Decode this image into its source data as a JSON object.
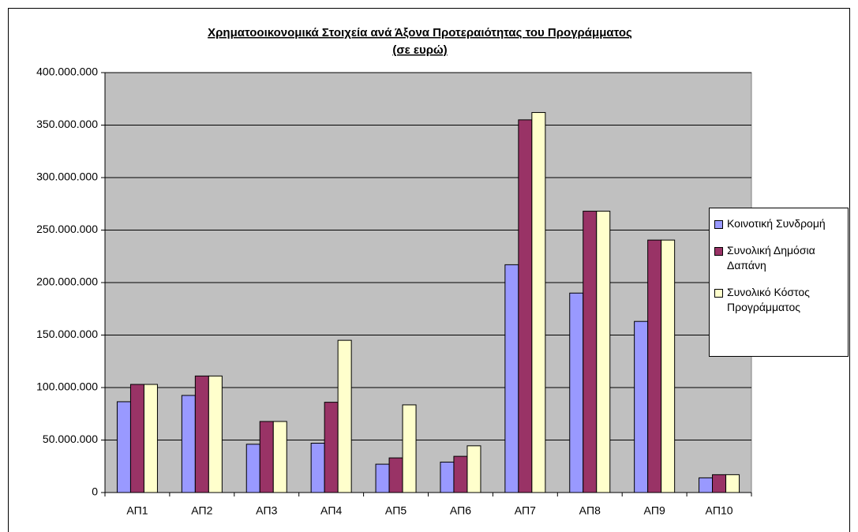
{
  "chart_data": {
    "type": "bar",
    "title": "Χρηματοοικονομικά Στοιχεία ανά Άξονα Προτεραιότητας του Προγράμματος",
    "subtitle": "(σε ευρώ)",
    "categories": [
      "ΑΠ1",
      "ΑΠ2",
      "ΑΠ3",
      "ΑΠ4",
      "ΑΠ5",
      "ΑΠ6",
      "ΑΠ7",
      "ΑΠ8",
      "ΑΠ9",
      "ΑΠ10"
    ],
    "series": [
      {
        "name": "Κοινοτική Συνδρομή",
        "color": "#9999ff",
        "values": [
          86500000,
          92500000,
          46000000,
          47000000,
          27000000,
          29000000,
          217000000,
          190000000,
          163000000,
          14000000
        ]
      },
      {
        "name": "Συνολική Δημόσια Δαπάνη",
        "color": "#993366",
        "values": [
          103000000,
          111000000,
          67700000,
          86000000,
          33000000,
          34500000,
          355000000,
          268000000,
          240500000,
          17000000
        ]
      },
      {
        "name": "Συνολικό Κόστος Προγράμματος",
        "color": "#ffffcc",
        "values": [
          103000000,
          111000000,
          67700000,
          145000000,
          83500000,
          44500000,
          362000000,
          268000000,
          240500000,
          17000000
        ]
      }
    ],
    "ylim": [
      0,
      400000000
    ],
    "yticks": [
      0,
      {
        "value": 50000000,
        "label": "50.000.000"
      },
      {
        "value": 100000000,
        "label": "100.000.000"
      },
      {
        "value": 150000000,
        "label": "150.000.000"
      },
      {
        "value": 200000000,
        "label": "200.000.000"
      },
      {
        "value": 250000000,
        "label": "250.000.000"
      },
      {
        "value": 300000000,
        "label": "300.000.000"
      },
      {
        "value": 350000000,
        "label": "350.000.000"
      },
      {
        "value": 400000000,
        "label": "400.000.000"
      }
    ],
    "grid": true,
    "legend": "right",
    "background": "#c0c0c0"
  }
}
